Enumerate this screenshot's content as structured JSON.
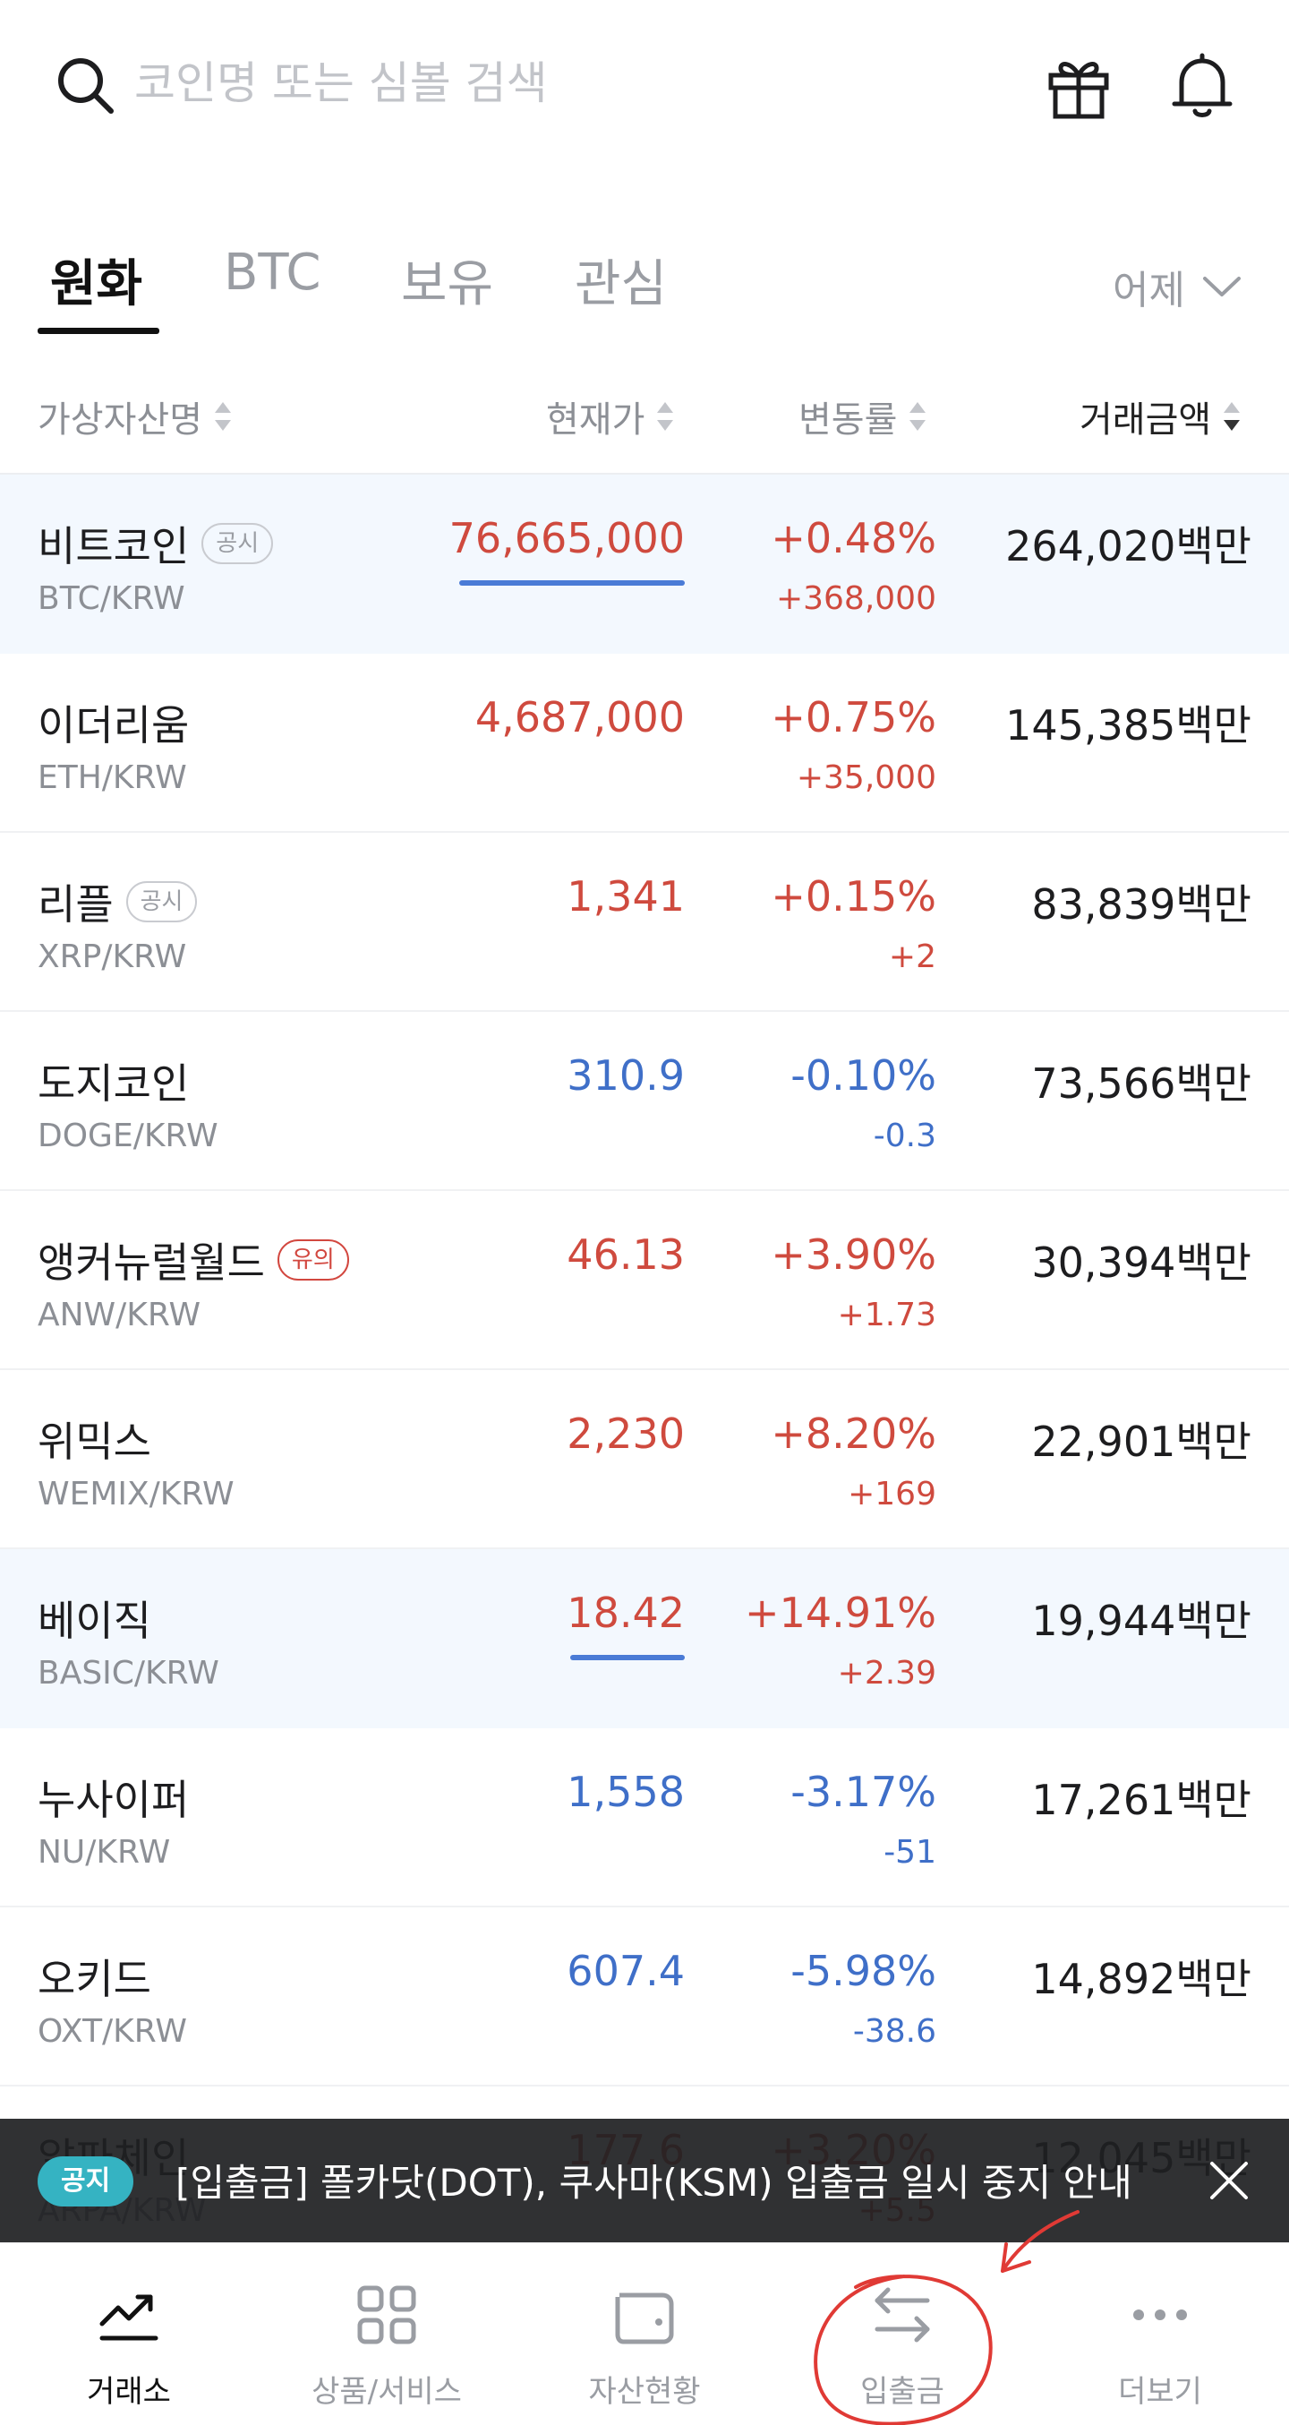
{
  "search": {
    "placeholder": "코인명 또는 심볼 검색"
  },
  "tabs": [
    {
      "label": "원화",
      "active": true
    },
    {
      "label": "BTC",
      "active": false
    },
    {
      "label": "보유",
      "active": false
    },
    {
      "label": "관심",
      "active": false
    }
  ],
  "period": {
    "label": "어제"
  },
  "columns": {
    "name": "가상자산명",
    "price": "현재가",
    "change": "변동률",
    "volume": "거래금액"
  },
  "rows": [
    {
      "name": "비트코인",
      "badge": "공시",
      "pair": "BTC/KRW",
      "price": "76,665,000",
      "rate": "+0.48%",
      "amount": "+368,000",
      "volume": "264,020백만",
      "direction": "up",
      "highlight": true
    },
    {
      "name": "이더리움",
      "badge": "",
      "pair": "ETH/KRW",
      "price": "4,687,000",
      "rate": "+0.75%",
      "amount": "+35,000",
      "volume": "145,385백만",
      "direction": "up",
      "highlight": false
    },
    {
      "name": "리플",
      "badge": "공시",
      "pair": "XRP/KRW",
      "price": "1,341",
      "rate": "+0.15%",
      "amount": "+2",
      "volume": "83,839백만",
      "direction": "up",
      "highlight": false
    },
    {
      "name": "도지코인",
      "badge": "",
      "pair": "DOGE/KRW",
      "price": "310.9",
      "rate": "-0.10%",
      "amount": "-0.3",
      "volume": "73,566백만",
      "direction": "down",
      "highlight": false
    },
    {
      "name": "앵커뉴럴월드",
      "badge": "유의",
      "pair": "ANW/KRW",
      "price": "46.13",
      "rate": "+3.90%",
      "amount": "+1.73",
      "volume": "30,394백만",
      "direction": "up",
      "highlight": false
    },
    {
      "name": "위믹스",
      "badge": "",
      "pair": "WEMIX/KRW",
      "price": "2,230",
      "rate": "+8.20%",
      "amount": "+169",
      "volume": "22,901백만",
      "direction": "up",
      "highlight": false
    },
    {
      "name": "베이직",
      "badge": "",
      "pair": "BASIC/KRW",
      "price": "18.42",
      "rate": "+14.91%",
      "amount": "+2.39",
      "volume": "19,944백만",
      "direction": "up",
      "highlight": true
    },
    {
      "name": "누사이퍼",
      "badge": "",
      "pair": "NU/KRW",
      "price": "1,558",
      "rate": "-3.17%",
      "amount": "-51",
      "volume": "17,261백만",
      "direction": "down",
      "highlight": false
    },
    {
      "name": "오키드",
      "badge": "",
      "pair": "OXT/KRW",
      "price": "607.4",
      "rate": "-5.98%",
      "amount": "-38.6",
      "volume": "14,892백만",
      "direction": "down",
      "highlight": false
    },
    {
      "name": "알파체인",
      "badge": "",
      "pair": "ARPA/KRW",
      "price": "177.6",
      "rate": "+3.20%",
      "amount": "+5.5",
      "volume": "12,045백만",
      "direction": "up",
      "highlight": false
    }
  ],
  "notice": {
    "badge": "공지",
    "text": "[입출금] 폴카닷(DOT), 쿠사마(KSM) 입출금 일시 중지 안내"
  },
  "bottom_nav": [
    {
      "label": "거래소",
      "icon": "trend-chart-icon",
      "active": true
    },
    {
      "label": "상품/서비스",
      "icon": "grid-icon",
      "active": false
    },
    {
      "label": "자산현황",
      "icon": "wallet-icon",
      "active": false
    },
    {
      "label": "입출금",
      "icon": "transfer-arrows-icon",
      "active": false
    },
    {
      "label": "더보기",
      "icon": "more-dots-icon",
      "active": false
    }
  ],
  "colors": {
    "up": "#cf4a3e",
    "down": "#3f6fc8",
    "highlight_row": "#f3f8fe",
    "notice_badge": "#35b3c2",
    "annotation": "#e03a35"
  }
}
